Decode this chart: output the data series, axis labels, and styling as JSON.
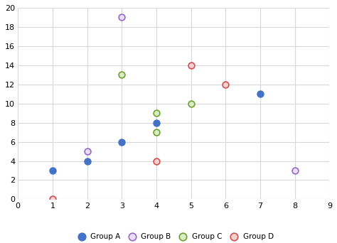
{
  "groups": {
    "Group A": {
      "x": [
        1,
        2,
        3,
        4,
        7
      ],
      "y": [
        3,
        4,
        6,
        8,
        11
      ],
      "facecolor": "#4472C4",
      "edgecolor": "#4472C4",
      "filled": true
    },
    "Group B": {
      "x": [
        2,
        3,
        8
      ],
      "y": [
        5,
        19,
        3
      ],
      "facecolor": "#E8E0F0",
      "edgecolor": "#9966CC",
      "filled": false
    },
    "Group C": {
      "x": [
        3,
        4,
        4,
        5
      ],
      "y": [
        13,
        9,
        7,
        10
      ],
      "facecolor": "#D8ECC8",
      "edgecolor": "#70A030",
      "filled": false
    },
    "Group D": {
      "x": [
        1,
        4,
        5,
        6
      ],
      "y": [
        0,
        4,
        14,
        12
      ],
      "facecolor": "#F5D0D0",
      "edgecolor": "#D05050",
      "filled": false
    }
  },
  "xlim": [
    0,
    9
  ],
  "ylim": [
    0,
    20
  ],
  "xticks": [
    0,
    1,
    2,
    3,
    4,
    5,
    6,
    7,
    8,
    9
  ],
  "yticks": [
    0,
    2,
    4,
    6,
    8,
    10,
    12,
    14,
    16,
    18,
    20
  ],
  "grid_color": "#D8D8D8",
  "background_color": "#FFFFFF",
  "marker_size": 40,
  "marker_linewidth": 1.2,
  "tick_fontsize": 8,
  "legend_fontsize": 7.5,
  "legend_ncol": 4
}
